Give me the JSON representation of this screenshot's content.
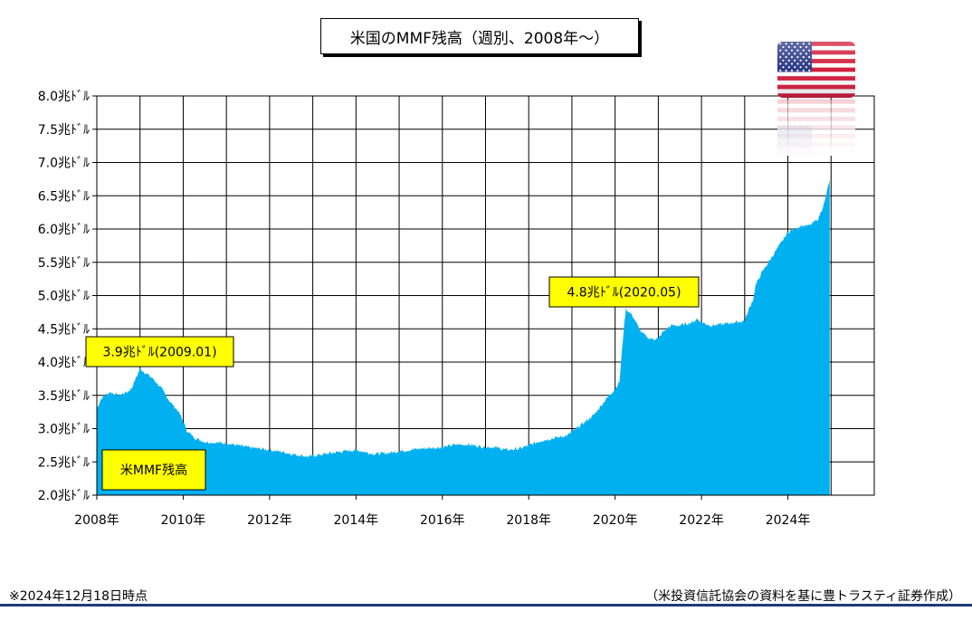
{
  "title": "米国のMMF残高（週別、2008年～）",
  "footnote": "※2024年12月18日時点",
  "source": "（米投資信託協会の資料を基に豊トラスティ証券作成）",
  "flag_icon": "us-flag-icon",
  "colors": {
    "area": "#00b0f0",
    "annotation_bg": "#ffff00",
    "rule": "#1f3a78",
    "grid": "#000000"
  },
  "chart_data": {
    "type": "area",
    "title": "米国のMMF残高（週別、2008年～）",
    "xlabel": "",
    "ylabel": "",
    "xlim": [
      2008.0,
      2026.0
    ],
    "ylim": [
      2.0,
      8.0
    ],
    "grid": true,
    "y_ticks": [
      {
        "value": 8.0,
        "label": "8.0兆ﾄﾞﾙ"
      },
      {
        "value": 7.5,
        "label": "7.5兆ﾄﾞﾙ"
      },
      {
        "value": 7.0,
        "label": "7.0兆ﾄﾞﾙ"
      },
      {
        "value": 6.5,
        "label": "6.5兆ﾄﾞﾙ"
      },
      {
        "value": 6.0,
        "label": "6.0兆ﾄﾞﾙ"
      },
      {
        "value": 5.5,
        "label": "5.5兆ﾄﾞﾙ"
      },
      {
        "value": 5.0,
        "label": "5.0兆ﾄﾞﾙ"
      },
      {
        "value": 4.5,
        "label": "4.5兆ﾄﾞﾙ"
      },
      {
        "value": 4.0,
        "label": "4.0兆ﾄﾞﾙ"
      },
      {
        "value": 3.5,
        "label": "3.5兆ﾄﾞﾙ"
      },
      {
        "value": 3.0,
        "label": "3.0兆ﾄﾞﾙ"
      },
      {
        "value": 2.5,
        "label": "2.5兆ﾄﾞﾙ"
      },
      {
        "value": 2.0,
        "label": "2.0兆ﾄﾞﾙ"
      }
    ],
    "x_ticks": [
      {
        "value": 2008,
        "label": "2008年"
      },
      {
        "value": 2010,
        "label": "2010年"
      },
      {
        "value": 2012,
        "label": "2012年"
      },
      {
        "value": 2014,
        "label": "2014年"
      },
      {
        "value": 2016,
        "label": "2016年"
      },
      {
        "value": 2018,
        "label": "2018年"
      },
      {
        "value": 2020,
        "label": "2020年"
      },
      {
        "value": 2022,
        "label": "2022年"
      },
      {
        "value": 2024,
        "label": "2024年"
      }
    ],
    "series": [
      {
        "name": "米MMF残高",
        "x": [
          2008.0,
          2008.1,
          2008.3,
          2008.5,
          2008.7,
          2008.8,
          2008.9,
          2009.0,
          2009.1,
          2009.3,
          2009.5,
          2009.7,
          2009.9,
          2010.0,
          2010.1,
          2010.3,
          2010.5,
          2011.0,
          2011.5,
          2012.0,
          2012.3,
          2012.5,
          2012.9,
          2013.3,
          2013.6,
          2014.0,
          2014.4,
          2014.7,
          2015.0,
          2015.5,
          2016.0,
          2016.3,
          2016.6,
          2016.9,
          2017.2,
          2017.5,
          2017.8,
          2018.0,
          2018.3,
          2018.6,
          2018.9,
          2019.2,
          2019.5,
          2019.8,
          2020.0,
          2020.1,
          2020.2,
          2020.25,
          2020.4,
          2020.6,
          2020.8,
          2021.0,
          2021.1,
          2021.3,
          2021.5,
          2021.8,
          2021.9,
          2022.0,
          2022.2,
          2022.5,
          2022.8,
          2023.0,
          2023.1,
          2023.2,
          2023.25,
          2023.4,
          2023.6,
          2023.8,
          2024.0,
          2024.3,
          2024.5,
          2024.7,
          2024.85,
          2024.97
        ],
        "values": [
          3.3,
          3.45,
          3.55,
          3.5,
          3.55,
          3.6,
          3.75,
          3.9,
          3.85,
          3.75,
          3.6,
          3.4,
          3.25,
          3.1,
          2.95,
          2.85,
          2.8,
          2.78,
          2.72,
          2.68,
          2.65,
          2.62,
          2.58,
          2.62,
          2.65,
          2.68,
          2.62,
          2.63,
          2.66,
          2.7,
          2.72,
          2.76,
          2.76,
          2.73,
          2.72,
          2.68,
          2.7,
          2.75,
          2.82,
          2.86,
          2.9,
          3.05,
          3.2,
          3.45,
          3.6,
          3.7,
          4.5,
          4.8,
          4.7,
          4.45,
          4.35,
          4.35,
          4.45,
          4.55,
          4.55,
          4.6,
          4.65,
          4.6,
          4.55,
          4.57,
          4.6,
          4.62,
          4.8,
          4.95,
          5.15,
          5.35,
          5.55,
          5.75,
          5.95,
          6.05,
          6.05,
          6.15,
          6.4,
          6.75
        ]
      }
    ],
    "annotations": [
      {
        "text": "3.9兆ﾄﾞﾙ(2009.01)",
        "x": 2009.0,
        "y": 3.9
      },
      {
        "text": "4.8兆ﾄﾞﾙ(2020.05)",
        "x": 2020.25,
        "y": 4.8
      }
    ],
    "legend": {
      "text": "米MMF残高",
      "placement": "bottom-left"
    }
  }
}
